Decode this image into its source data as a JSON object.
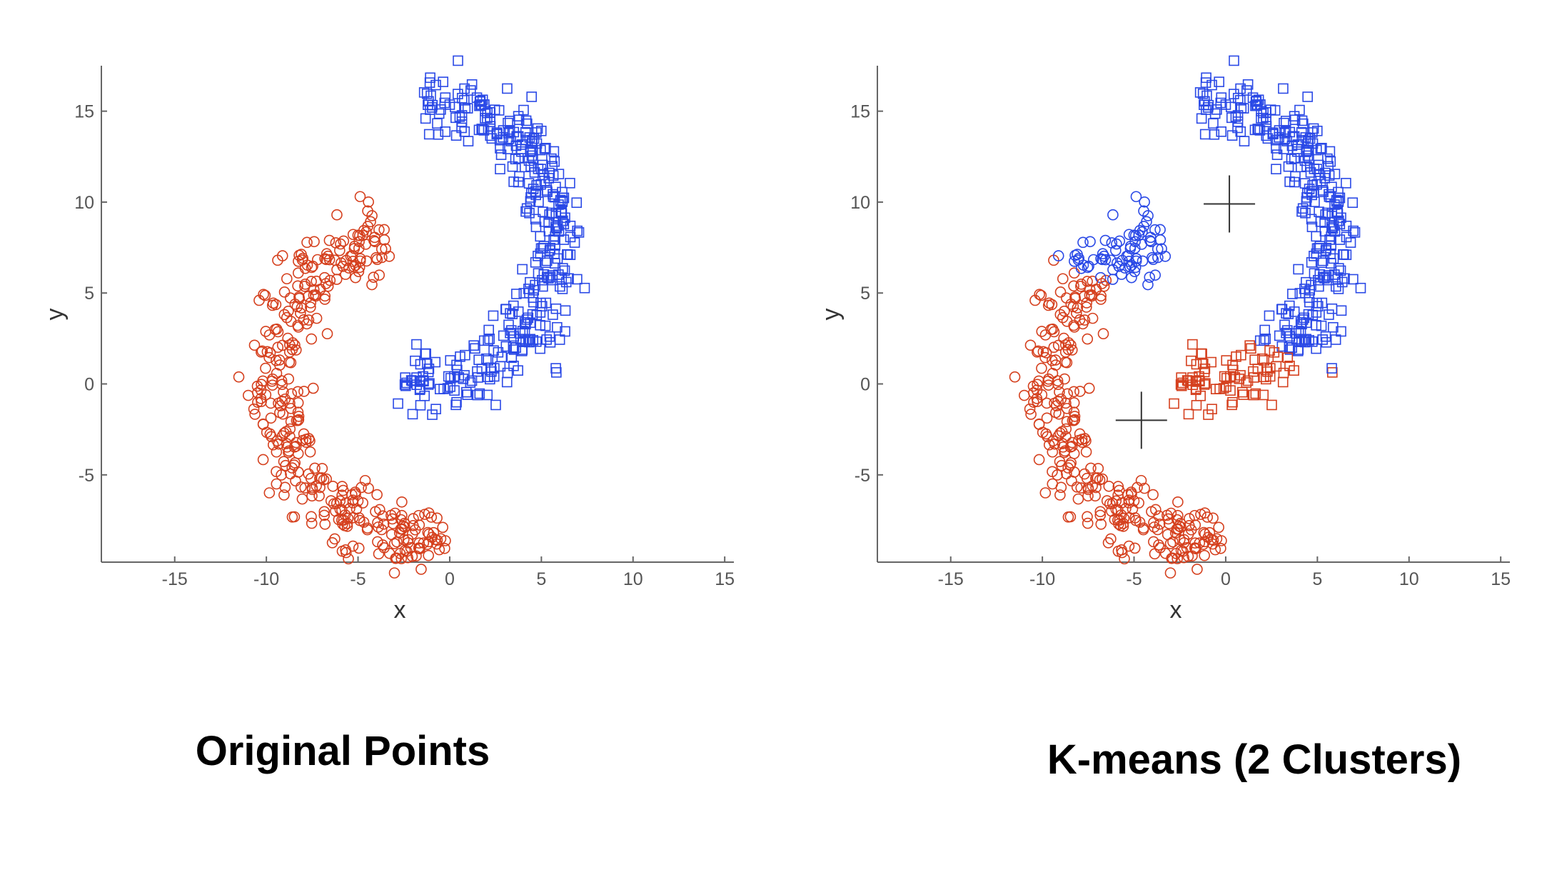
{
  "colors": {
    "cluster_a": "#d5401e",
    "cluster_b": "#2a49e6",
    "axis": "#666666",
    "centroid": "#333333"
  },
  "chart_data": [
    {
      "type": "scatter",
      "caption": "Original Points",
      "xlabel": "x",
      "ylabel": "y",
      "xlim": [
        -19,
        15.5
      ],
      "ylim": [
        -9.8,
        17.5
      ],
      "xticks": [
        "-15",
        "-10",
        "-5",
        "0",
        "5",
        "10",
        "15"
      ],
      "yticks": [
        "-5",
        "0",
        "5",
        "10",
        "15"
      ],
      "grid": false,
      "series": [
        {
          "marker": "circle",
          "color": "cluster_a",
          "shape": "lower-crescent"
        },
        {
          "marker": "square",
          "color": "cluster_b",
          "shape": "upper-crescent"
        }
      ]
    },
    {
      "type": "scatter",
      "caption": "K-means (2 Clusters)",
      "xlabel": "x",
      "ylabel": "y",
      "xlim": [
        -19,
        15.5
      ],
      "ylim": [
        -9.8,
        17.5
      ],
      "xticks": [
        "-15",
        "-10",
        "-5",
        "0",
        "5",
        "10",
        "15"
      ],
      "yticks": [
        "-5",
        "0",
        "5",
        "10",
        "15"
      ],
      "grid": false,
      "centroids": [
        {
          "x": 0.2,
          "y": 9.9
        },
        {
          "x": -4.6,
          "y": -2.0
        }
      ],
      "split_rule": "points assigned to nearest centroid",
      "series": [
        {
          "cluster": 1,
          "color": "cluster_b",
          "centroid_index": 0
        },
        {
          "cluster": 2,
          "color": "cluster_a",
          "centroid_index": 1
        }
      ]
    }
  ]
}
